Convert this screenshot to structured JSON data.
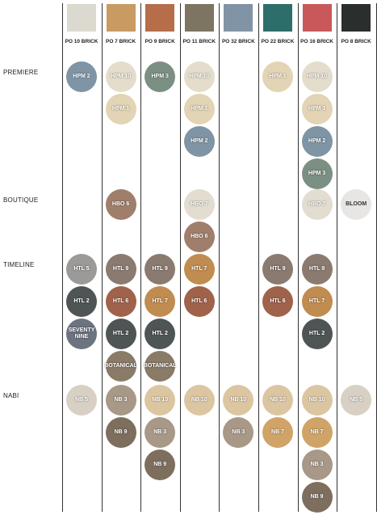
{
  "sections": [
    "PREMIERE",
    "BOUTIQUE",
    "TIMELINE",
    "NABI"
  ],
  "columns": [
    {
      "name": "PO 10 BRICK",
      "color": "#dcd9d0",
      "cells": [
        [
          {
            "label": "HPM 2",
            "color": "#7f95a5"
          }
        ],
        [],
        [
          {
            "label": "HTL 5",
            "color": "#9c9a98"
          },
          {
            "label": "HTL 2",
            "color": "#4e5554"
          },
          {
            "label": "SEVENTY NINE",
            "color": "#6c7480"
          }
        ],
        [
          {
            "label": "NB 5",
            "color": "#d8d0c4"
          }
        ]
      ]
    },
    {
      "name": "PO 7 BRICK",
      "color": "#c99a62",
      "cells": [
        [
          {
            "label": "HPM 10",
            "color": "#e4ddcc"
          },
          {
            "label": "HPM 1",
            "color": "#e2d4b4"
          }
        ],
        [
          {
            "label": "HBO 6",
            "color": "#a07e6c"
          }
        ],
        [
          {
            "label": "HTL 9",
            "color": "#8a7a70"
          },
          {
            "label": "HTL 6",
            "color": "#a0624a"
          },
          {
            "label": "HTL 2",
            "color": "#4e5554"
          },
          {
            "label": "BOTANICAL",
            "color": "#8a7a68"
          }
        ],
        [
          {
            "label": "NB 3",
            "color": "#a89888"
          },
          {
            "label": "NB 9",
            "color": "#7e6e5e"
          }
        ]
      ]
    },
    {
      "name": "PO 9 BRICK",
      "color": "#b56d4a",
      "cells": [
        [
          {
            "label": "HPM 3",
            "color": "#7b8f83"
          }
        ],
        [],
        [
          {
            "label": "HTL 9",
            "color": "#8a7a70"
          },
          {
            "label": "HTL 7",
            "color": "#c08c50"
          },
          {
            "label": "HTL 2",
            "color": "#4e5554"
          },
          {
            "label": "BOTANICAL",
            "color": "#8a7a68"
          }
        ],
        [
          {
            "label": "NB 10",
            "color": "#dcc6a2"
          },
          {
            "label": "NB 3",
            "color": "#a89888"
          },
          {
            "label": "NB 9",
            "color": "#7e6e5e"
          }
        ]
      ]
    },
    {
      "name": "PO 11 BRICK",
      "color": "#7d7462",
      "cells": [
        [
          {
            "label": "HPM 10",
            "color": "#e4ddcc"
          },
          {
            "label": "HPM 1",
            "color": "#e2d4b4"
          },
          {
            "label": "HPM 2",
            "color": "#7f95a5"
          }
        ],
        [
          {
            "label": "HBO 7",
            "color": "#e2ddd0"
          },
          {
            "label": "HBO 6",
            "color": "#a07e6c"
          }
        ],
        [
          {
            "label": "HTL 7",
            "color": "#c08c50"
          },
          {
            "label": "HTL 6",
            "color": "#a0624a"
          }
        ],
        [
          {
            "label": "NB 10",
            "color": "#dcc6a2"
          }
        ]
      ]
    },
    {
      "name": "PO 32 BRICK",
      "color": "#8094a6",
      "cells": [
        [],
        [],
        [],
        [
          {
            "label": "NB 10",
            "color": "#dcc6a2"
          },
          {
            "label": "NB 3",
            "color": "#a89888"
          }
        ]
      ]
    },
    {
      "name": "PO 22 BRICK",
      "color": "#2e6e6a",
      "cells": [
        [
          {
            "label": "HPM 1",
            "color": "#e2d4b4"
          }
        ],
        [],
        [
          {
            "label": "HTL 9",
            "color": "#8a7a70"
          },
          {
            "label": "HTL 6",
            "color": "#a0624a"
          }
        ],
        [
          {
            "label": "NB 10",
            "color": "#dcc6a2"
          },
          {
            "label": "NB 7",
            "color": "#d0a468"
          }
        ]
      ]
    },
    {
      "name": "PO 16 BRICK",
      "color": "#c8585a",
      "cells": [
        [
          {
            "label": "HPM 10",
            "color": "#e4ddcc"
          },
          {
            "label": "HPM 1",
            "color": "#e2d4b4"
          },
          {
            "label": "HPM 2",
            "color": "#7f95a5"
          },
          {
            "label": "HPM 3",
            "color": "#7b8f83"
          }
        ],
        [
          {
            "label": "HBO 7",
            "color": "#e2ddd0"
          }
        ],
        [
          {
            "label": "HTL 9",
            "color": "#8a7a70"
          },
          {
            "label": "HTL 7",
            "color": "#c08c50"
          },
          {
            "label": "HTL 2",
            "color": "#4e5554"
          }
        ],
        [
          {
            "label": "NB 10",
            "color": "#dcc6a2"
          },
          {
            "label": "NB 7",
            "color": "#d0a468"
          },
          {
            "label": "NB 3",
            "color": "#a89888"
          },
          {
            "label": "NB 9",
            "color": "#7e6e5e"
          }
        ]
      ]
    },
    {
      "name": "PO 8 BRICK",
      "color": "#2a2e2c",
      "cells": [
        [],
        [
          {
            "label": "BLOOM",
            "color": "#e8e6e4"
          }
        ],
        [],
        [
          {
            "label": "NB 5",
            "color": "#d8d0c4"
          }
        ]
      ]
    }
  ]
}
